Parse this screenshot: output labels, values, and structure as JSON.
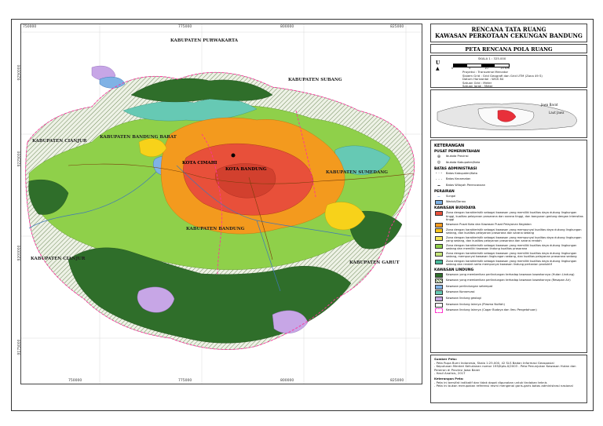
{
  "map": {
    "regions": {
      "purwakarta": "KABUPATEN PURWAKARTA",
      "subang": "KABUPATEN SUBANG",
      "cianjur_n": "KABUPATEN CIANJUR",
      "cianjur_s": "KABUPATEN CIANJUR",
      "bandung_barat": "KABUPATEN BANDUNG BARAT",
      "sumedang": "KABUPATEN SUMEDANG",
      "bandung": "KABUPATEN BANDUNG",
      "garut": "KABUPATEN GARUT"
    },
    "cities": {
      "cimahi": "KOTA CIMAHI",
      "bandung": "KOTA BANDUNG"
    },
    "coords": {
      "top": [
        "750000",
        "775000",
        "800000",
        "825000"
      ],
      "bottom": [
        "750000",
        "775000",
        "800000",
        "825000"
      ],
      "left": [
        "9250000",
        "9225000",
        "9200000",
        "9175000"
      ],
      "right": [
        "9250000",
        "9225000",
        "9200000",
        "9175000"
      ]
    },
    "colors": {
      "urban_dense": "#e8503a",
      "urban_medium": "#f39a1e",
      "urban_low": "#f7d21a",
      "forest": "#2f6e2a",
      "protected": "#b9d96a",
      "agriculture": "#8fd04a",
      "plantation": "#66c9b4",
      "water": "#7fb2e5",
      "geology": "#c7a6e6",
      "border": "#ff3399"
    }
  },
  "legend": {
    "title_line1": "RENCANA TATA RUANG",
    "title_line2": "KAWASAN PERKOTAAN CEKUNGAN BANDUNG",
    "subtitle": "PETA RENCANA POLA RUANG",
    "scale": "SKALA 1 : 325.000",
    "scale_ticks": [
      "0",
      "5",
      "10",
      "15 Km"
    ],
    "north": "U",
    "projection": [
      {
        "k": "Proyeksi",
        "v": "Transverse Mercator"
      },
      {
        "k": "Sistem Grid",
        "v": "Grid Geografi dan Grid UTM (Zona 49 S)"
      },
      {
        "k": "Datum Horizontal",
        "v": "WGS 84"
      },
      {
        "k": "Satuan Grid",
        "v": "Meter"
      },
      {
        "k": "Satuan Jarak",
        "v": "Meter"
      }
    ],
    "inset_labels": [
      "Jawa Barat",
      "Laut Jawa"
    ],
    "keterangan": "KETERANGAN",
    "pusat_title": "PUSAT PEMERINTAHAN",
    "pusat_items": [
      "Ibukota Provinsi",
      "Ibukota Kabupaten/Kota"
    ],
    "batas_title": "BATAS ADMINISTRASI",
    "batas_items": [
      "Batas Kabupaten/Kota",
      "Batas Kecamatan",
      "Batas Wilayah Perencanaan"
    ],
    "perairan_title": "PERAIRAN",
    "perairan_items": [
      "Sungai",
      "Waduk/Danau"
    ],
    "budidaya_title": "KAWASAN BUDIDAYA",
    "budidaya_items": [
      {
        "color": "#e8503a",
        "text": "Zona dengan karakteristik sebagai kawasan yang memiliki kualitas daya dukung lingkungan tinggi, kualitas pelayanan prasarana dan sarana tinggi, dan bangunan gedung dengan intensitas tinggi"
      },
      {
        "color": "#f39a1e",
        "text": "Kawasan Pusat Kota dan Kawasan Pusat Pelayanan Kegiatan"
      },
      {
        "color": "#f7c31a",
        "text": "Zona dengan karakteristik sebagai kawasan yang mempunyai kualitas daya dukung lingkungan sedang, dan kualitas pelayanan prasarana dan sarana sedang"
      },
      {
        "color": "#f5e65a",
        "text": "Zona dengan karakteristik sebagai kawasan yang mempunyai kualitas daya dukung lingkungan yang sedang, dan kualitas pelayanan prasarana dan sarana rendah"
      },
      {
        "color": "#8fd04a",
        "text": "Zona dengan karakteristik sebagai kawasan yang memiliki kualitas daya dukung lingkungan sedang dan memiliki kawasan lindung kualitas prasarana"
      },
      {
        "color": "#c6e67a",
        "text": "Zona dengan karakteristik sebagai kawasan yang memiliki kualitas daya dukung lingkungan sedang, mempunyai kawasan lingkungan sedang, dan kualitas pelayanan prasarana sedang"
      },
      {
        "color": "#47b89a",
        "text": "Zona dengan karakteristik sebagai kawasan yang memiliki kualitas daya dukung lingkungan sedang dan rendah serta mempunyai kawasan lindung pertanian produktif"
      }
    ],
    "lindung_title": "KAWASAN LINDUNG",
    "lindung_items": [
      {
        "color": "#2f6e2a",
        "text": "Kawasan yang memberikan perlindungan terhadap kawasan bawahannya (Hutan Lindung)"
      },
      {
        "color": "#e8efe0",
        "text": "Kawasan yang memberikan perlindungan terhadap kawasan bawahannya (Resapan Air)"
      },
      {
        "color": "#7fb2e5",
        "text": "Kawasan perlindungan setempat"
      },
      {
        "color": "#66c9b4",
        "text": "Kawasan Konservasi"
      },
      {
        "color": "#c7a6e6",
        "text": "Kawasan lindung geologi"
      },
      {
        "color": "#ffffff",
        "text": "Kawasan lindung lainnya (Plasma Nutfah)"
      },
      {
        "color": "#ffffff",
        "text": "Kawasan lindung lainnya (Cagar Budaya dan Ilmu Pengetahuan)"
      }
    ],
    "sumber_title": "Sumber Peta:",
    "sumber_lines": [
      "- Peta Rupa Bumi Indonesia, Skala 1:25.000, 42 SLS Badan Informasi Geospasial",
      "- Keputusan Menteri Kehutanan nomor 195/Kpts-II/2003 - Peta Penunjukan Kawasan Hutan dan",
      "  Perairan di Provinsi Jawa Barat",
      "- Hasil Analisis, 2017"
    ],
    "ket_title": "Keterangan Peta:",
    "ket_lines": [
      "- Peta ini bersifat indikatif dan tidak dapat digunakan untuk tindakan teknis",
      "- Peta ini bukan merupakan referensi resmi mengenai garis-garis batas administrasi nasional"
    ]
  }
}
